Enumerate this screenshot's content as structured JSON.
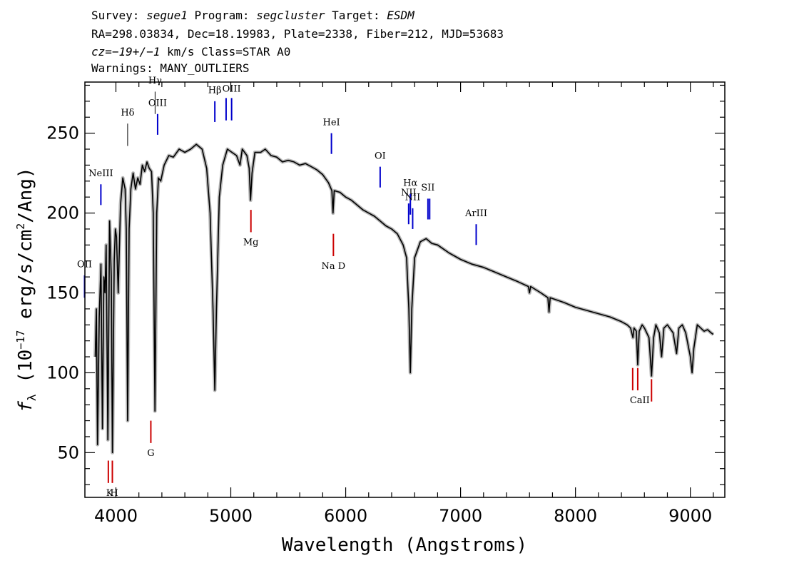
{
  "header": {
    "line1": {
      "survey_label": "Survey: ",
      "survey": "segue1",
      "program_label": " Program: ",
      "program": "segcluster",
      "target_label": " Target: ",
      "target": "ESDM"
    },
    "line2": "RA=298.03834, Dec=18.19983, Plate=2338, Fiber=212, MJD=53683",
    "line3": {
      "cz": "cz=−19+/−1",
      "rest": " km/s Class=STAR A0"
    },
    "line4": "Warnings: MANY_OUTLIERS"
  },
  "chart_data": {
    "type": "line",
    "title": "",
    "xlabel": "Wavelength (Angstroms)",
    "ylabel_parts": {
      "f": "f",
      "sub": "λ",
      "pre": " (10",
      "exp1": "−17",
      "mid": " erg/s/cm",
      "exp2": "2",
      "post": "/Ang)"
    },
    "xlim": [
      3730,
      9300
    ],
    "ylim": [
      22,
      282
    ],
    "x_ticks": [
      4000,
      5000,
      6000,
      7000,
      8000,
      9000
    ],
    "x_tick_labels": [
      "4000",
      "5000",
      "6000",
      "7000",
      "8000",
      "9000"
    ],
    "y_ticks": [
      50,
      100,
      150,
      200,
      250
    ],
    "y_tick_labels": [
      "50",
      "100",
      "150",
      "200",
      "250"
    ],
    "grid": false,
    "spectrum": [
      [
        3820,
        110
      ],
      [
        3830,
        140
      ],
      [
        3840,
        55
      ],
      [
        3855,
        135
      ],
      [
        3870,
        168
      ],
      [
        3883,
        65
      ],
      [
        3895,
        160
      ],
      [
        3905,
        150
      ],
      [
        3915,
        180
      ],
      [
        3930,
        58
      ],
      [
        3945,
        195
      ],
      [
        3960,
        160
      ],
      [
        3970,
        50
      ],
      [
        3985,
        170
      ],
      [
        3995,
        190
      ],
      [
        4005,
        185
      ],
      [
        4020,
        150
      ],
      [
        4040,
        205
      ],
      [
        4060,
        222
      ],
      [
        4080,
        215
      ],
      [
        4090,
        190
      ],
      [
        4102,
        70
      ],
      [
        4115,
        190
      ],
      [
        4130,
        215
      ],
      [
        4150,
        225
      ],
      [
        4170,
        215
      ],
      [
        4190,
        222
      ],
      [
        4210,
        218
      ],
      [
        4230,
        230
      ],
      [
        4250,
        226
      ],
      [
        4270,
        232
      ],
      [
        4290,
        228
      ],
      [
        4310,
        226
      ],
      [
        4325,
        200
      ],
      [
        4340,
        76
      ],
      [
        4355,
        200
      ],
      [
        4370,
        222
      ],
      [
        4390,
        220
      ],
      [
        4420,
        230
      ],
      [
        4460,
        236
      ],
      [
        4500,
        235
      ],
      [
        4550,
        240
      ],
      [
        4600,
        238
      ],
      [
        4650,
        240
      ],
      [
        4700,
        243
      ],
      [
        4750,
        240
      ],
      [
        4790,
        228
      ],
      [
        4820,
        200
      ],
      [
        4845,
        140
      ],
      [
        4861,
        89
      ],
      [
        4875,
        140
      ],
      [
        4900,
        210
      ],
      [
        4930,
        230
      ],
      [
        4970,
        240
      ],
      [
        5010,
        238
      ],
      [
        5050,
        236
      ],
      [
        5080,
        230
      ],
      [
        5100,
        240
      ],
      [
        5140,
        236
      ],
      [
        5160,
        228
      ],
      [
        5172,
        208
      ],
      [
        5185,
        225
      ],
      [
        5210,
        238
      ],
      [
        5260,
        238
      ],
      [
        5300,
        240
      ],
      [
        5350,
        236
      ],
      [
        5400,
        235
      ],
      [
        5450,
        232
      ],
      [
        5500,
        233
      ],
      [
        5550,
        232
      ],
      [
        5600,
        230
      ],
      [
        5650,
        231
      ],
      [
        5700,
        229
      ],
      [
        5750,
        227
      ],
      [
        5800,
        224
      ],
      [
        5850,
        219
      ],
      [
        5880,
        214
      ],
      [
        5890,
        200
      ],
      [
        5900,
        214
      ],
      [
        5950,
        213
      ],
      [
        6000,
        210
      ],
      [
        6050,
        208
      ],
      [
        6100,
        205
      ],
      [
        6150,
        202
      ],
      [
        6200,
        200
      ],
      [
        6250,
        198
      ],
      [
        6300,
        195
      ],
      [
        6350,
        192
      ],
      [
        6400,
        190
      ],
      [
        6450,
        187
      ],
      [
        6500,
        180
      ],
      [
        6530,
        172
      ],
      [
        6550,
        140
      ],
      [
        6563,
        100
      ],
      [
        6575,
        140
      ],
      [
        6600,
        172
      ],
      [
        6650,
        182
      ],
      [
        6700,
        184
      ],
      [
        6750,
        181
      ],
      [
        6800,
        180
      ],
      [
        6900,
        175
      ],
      [
        7000,
        171
      ],
      [
        7100,
        168
      ],
      [
        7200,
        166
      ],
      [
        7300,
        163
      ],
      [
        7400,
        160
      ],
      [
        7500,
        157
      ],
      [
        7590,
        154
      ],
      [
        7600,
        150
      ],
      [
        7610,
        154
      ],
      [
        7700,
        150
      ],
      [
        7760,
        147
      ],
      [
        7770,
        138
      ],
      [
        7780,
        147
      ],
      [
        7900,
        144
      ],
      [
        8000,
        141
      ],
      [
        8100,
        139
      ],
      [
        8200,
        137
      ],
      [
        8300,
        135
      ],
      [
        8400,
        132
      ],
      [
        8450,
        130
      ],
      [
        8480,
        128
      ],
      [
        8500,
        122
      ],
      [
        8510,
        128
      ],
      [
        8530,
        126
      ],
      [
        8542,
        105
      ],
      [
        8555,
        126
      ],
      [
        8580,
        130
      ],
      [
        8600,
        128
      ],
      [
        8620,
        125
      ],
      [
        8640,
        122
      ],
      [
        8662,
        98
      ],
      [
        8680,
        122
      ],
      [
        8700,
        130
      ],
      [
        8730,
        125
      ],
      [
        8750,
        110
      ],
      [
        8770,
        128
      ],
      [
        8800,
        130
      ],
      [
        8850,
        125
      ],
      [
        8880,
        112
      ],
      [
        8900,
        128
      ],
      [
        8930,
        130
      ],
      [
        8960,
        125
      ],
      [
        9000,
        110
      ],
      [
        9015,
        100
      ],
      [
        9030,
        115
      ],
      [
        9060,
        130
      ],
      [
        9090,
        128
      ],
      [
        9120,
        126
      ],
      [
        9150,
        127
      ],
      [
        9180,
        125
      ],
      [
        9200,
        124
      ]
    ],
    "emission_lines": [
      {
        "label": "OII",
        "wave": 3727,
        "y_from": 147,
        "y_to": 161,
        "label_y": 166,
        "color": "#0000cc"
      },
      {
        "label": "NeIII",
        "wave": 3869,
        "y_from": 205,
        "y_to": 218,
        "label_y": 223,
        "color": "#0000cc"
      },
      {
        "label": "Hδ",
        "wave": 4102,
        "y_from": 242,
        "y_to": 256,
        "label_y": 261,
        "color": "#000000"
      },
      {
        "label": "Hγ",
        "wave": 4341,
        "y_from": 262,
        "y_to": 276,
        "label_y": 281,
        "color": "#000000"
      },
      {
        "label": "OIII",
        "wave": 4363,
        "y_from": 249,
        "y_to": 262,
        "label_y": 267,
        "color": "#0000cc"
      },
      {
        "label": "Hβ",
        "wave": 4861,
        "y_from": 257,
        "y_to": 270,
        "label_y": 275,
        "color": "#0000cc"
      },
      {
        "label": "OIII",
        "wave": 4959,
        "y_from": 258,
        "y_to": 272,
        "label_y": null,
        "color": "#0000cc"
      },
      {
        "label": "OIII",
        "wave": 5007,
        "y_from": 258,
        "y_to": 272,
        "label_y": 276,
        "color": "#0000cc"
      },
      {
        "label": "HeI",
        "wave": 5876,
        "y_from": 237,
        "y_to": 250,
        "label_y": 255,
        "color": "#0000cc"
      },
      {
        "label": "OI",
        "wave": 6300,
        "y_from": 216,
        "y_to": 229,
        "label_y": 234,
        "color": "#0000cc"
      },
      {
        "label": "NII",
        "wave": 6548,
        "y_from": 193,
        "y_to": 206,
        "label_y": 211,
        "color": "#0000cc"
      },
      {
        "label": "Hα",
        "wave": 6563,
        "y_from": 199,
        "y_to": 212,
        "label_y": 217,
        "color": "#0000cc"
      },
      {
        "label": "NII",
        "wave": 6583,
        "y_from": 190,
        "y_to": 203,
        "label_y": 208,
        "color": "#0000cc"
      },
      {
        "label": "SII",
        "wave": 6716,
        "y_from": 196,
        "y_to": 209,
        "label_y": 214,
        "color": "#0000cc"
      },
      {
        "label": "SII",
        "wave": 6731,
        "y_from": 196,
        "y_to": 209,
        "label_y": null,
        "color": "#0000cc"
      },
      {
        "label": "ArIII",
        "wave": 7136,
        "y_from": 180,
        "y_to": 193,
        "label_y": 198,
        "color": "#0000cc"
      }
    ],
    "absorption_lines": [
      {
        "label": "K",
        "wave": 3934,
        "y_from": 31,
        "y_to": 45,
        "label_y": 23,
        "label_x": 3945,
        "color": "#cc0000"
      },
      {
        "label": "H",
        "wave": 3969,
        "y_from": 31,
        "y_to": 45,
        "label_y": 23,
        "label_x": 3985,
        "color": "#cc0000"
      },
      {
        "label": "G",
        "wave": 4304,
        "y_from": 56,
        "y_to": 70,
        "label_y": 48,
        "label_x": 4304,
        "color": "#cc0000"
      },
      {
        "label": "Mg",
        "wave": 5175,
        "y_from": 188,
        "y_to": 202,
        "label_y": 180,
        "label_x": 5175,
        "color": "#cc0000"
      },
      {
        "label": "Na  D",
        "wave": 5893,
        "y_from": 173,
        "y_to": 187,
        "label_y": 165,
        "label_x": 5893,
        "color": "#cc0000"
      },
      {
        "label": "CaII",
        "wave": 8498,
        "y_from": 89,
        "y_to": 103,
        "label_y": null,
        "label_x": null,
        "color": "#cc0000"
      },
      {
        "label": "CaII",
        "wave": 8542,
        "y_from": 89,
        "y_to": 103,
        "label_y": 81,
        "label_x": 8560,
        "color": "#cc0000"
      },
      {
        "label": "CaII",
        "wave": 8662,
        "y_from": 82,
        "y_to": 96,
        "label_y": null,
        "label_x": null,
        "color": "#cc0000"
      }
    ]
  }
}
